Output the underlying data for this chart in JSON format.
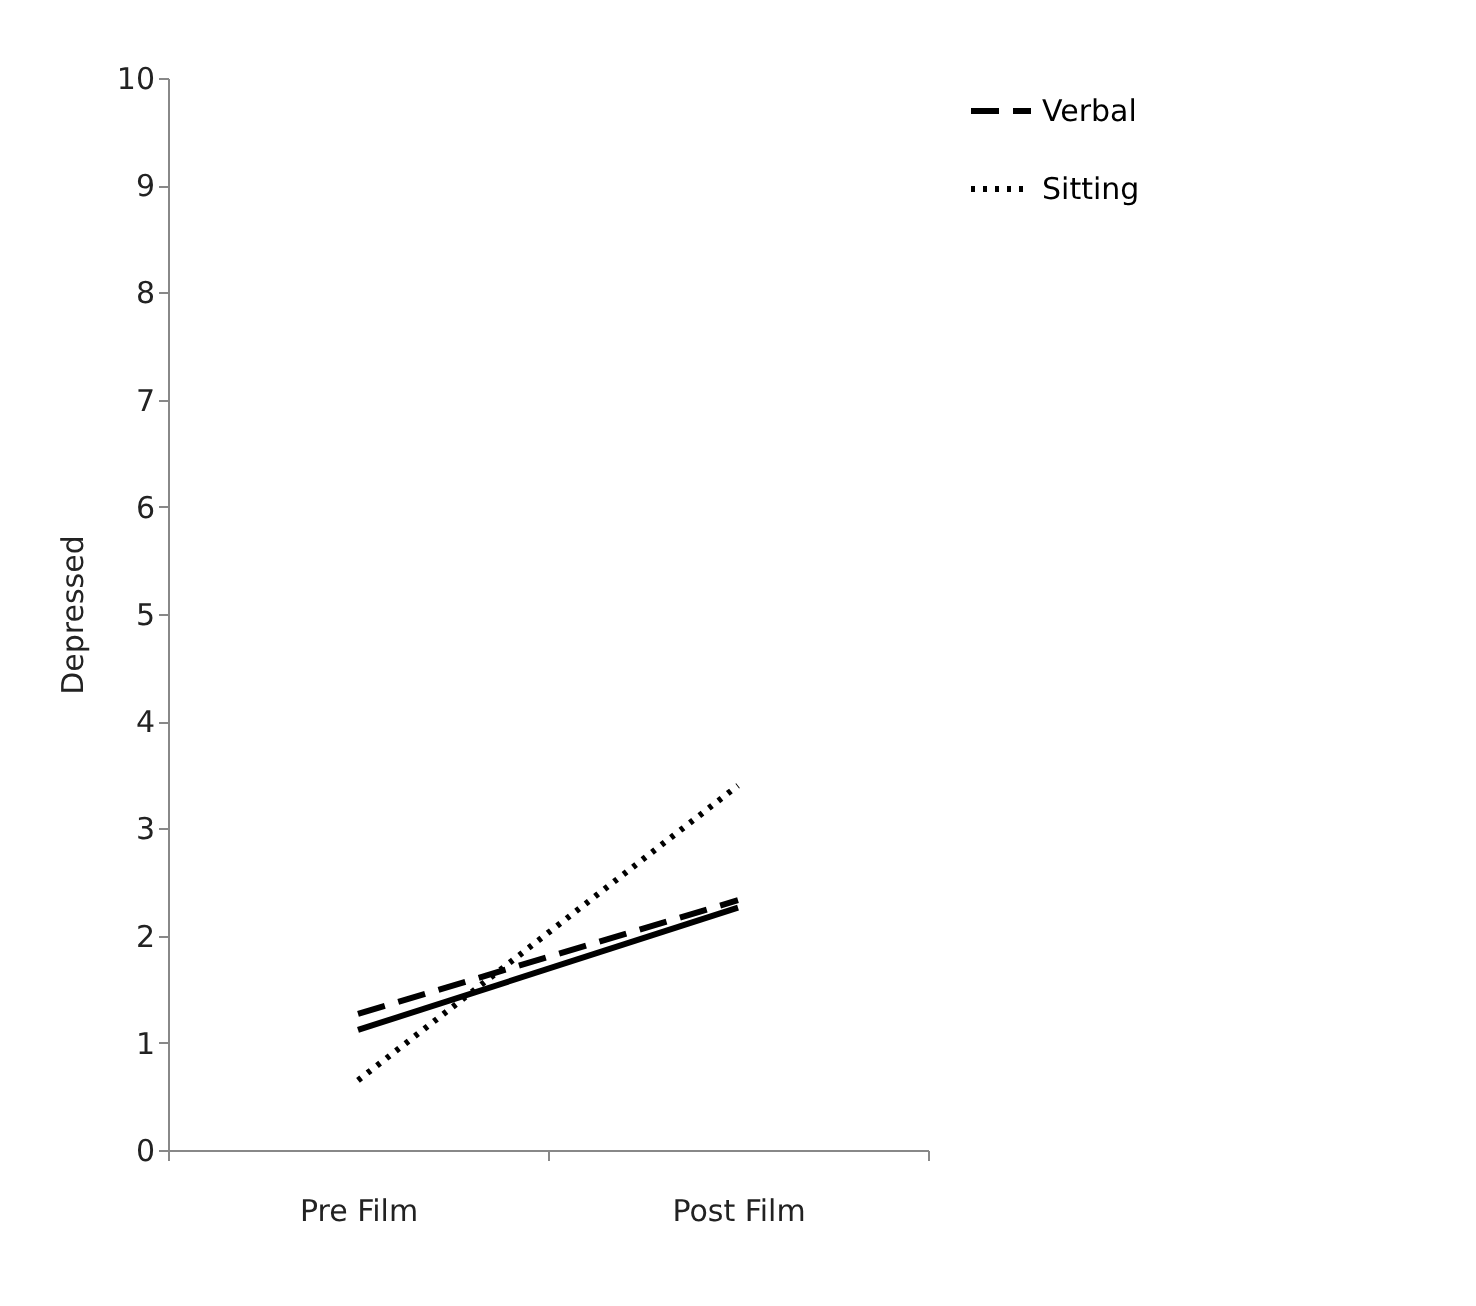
{
  "chart_data": {
    "type": "line",
    "ylabel": "Depressed",
    "categories": [
      "Pre Film",
      "Post Film"
    ],
    "series": [
      {
        "color": "#000000",
        "line_style": "solid",
        "values": [
          1.12,
          2.26
        ]
      },
      {
        "name": "Verbal",
        "color": "#000000",
        "line_style": "dashed",
        "values": [
          1.27,
          2.33
        ]
      },
      {
        "name": "Sitting",
        "color": "#000000",
        "line_style": "dotted",
        "values": [
          0.65,
          3.4
        ]
      }
    ],
    "ylim": [
      0,
      10
    ],
    "yticks": [
      0,
      1,
      2,
      3,
      4,
      5,
      6,
      7,
      8,
      9,
      10
    ],
    "grid": false,
    "legend": "right",
    "marker": "none"
  }
}
